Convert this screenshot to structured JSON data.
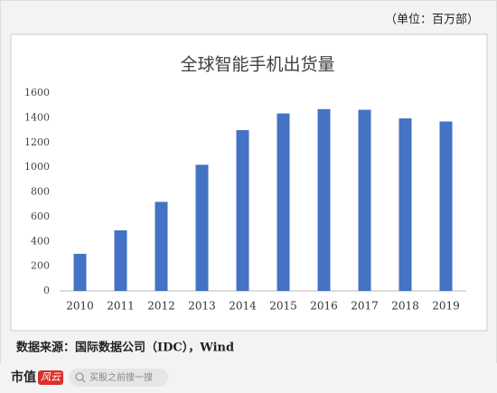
{
  "chart_data": {
    "type": "bar",
    "title": "全球智能手机出货量",
    "subtitle": "（单位：百万部）",
    "categories": [
      "2010",
      "2011",
      "2012",
      "2013",
      "2014",
      "2015",
      "2016",
      "2017",
      "2018",
      "2019"
    ],
    "values": [
      300,
      490,
      720,
      1020,
      1300,
      1435,
      1470,
      1465,
      1395,
      1370
    ],
    "color": "#4472c4",
    "ylim": [
      0,
      1600
    ],
    "yticks": [
      0,
      200,
      400,
      600,
      800,
      1000,
      1200,
      1400,
      1600
    ],
    "grid": false
  },
  "source": "数据来源：国际数据公司（IDC），Wind",
  "footer": {
    "logo_text": "市值",
    "logo_badge": "风云",
    "search": "买股之前搜一搜"
  }
}
